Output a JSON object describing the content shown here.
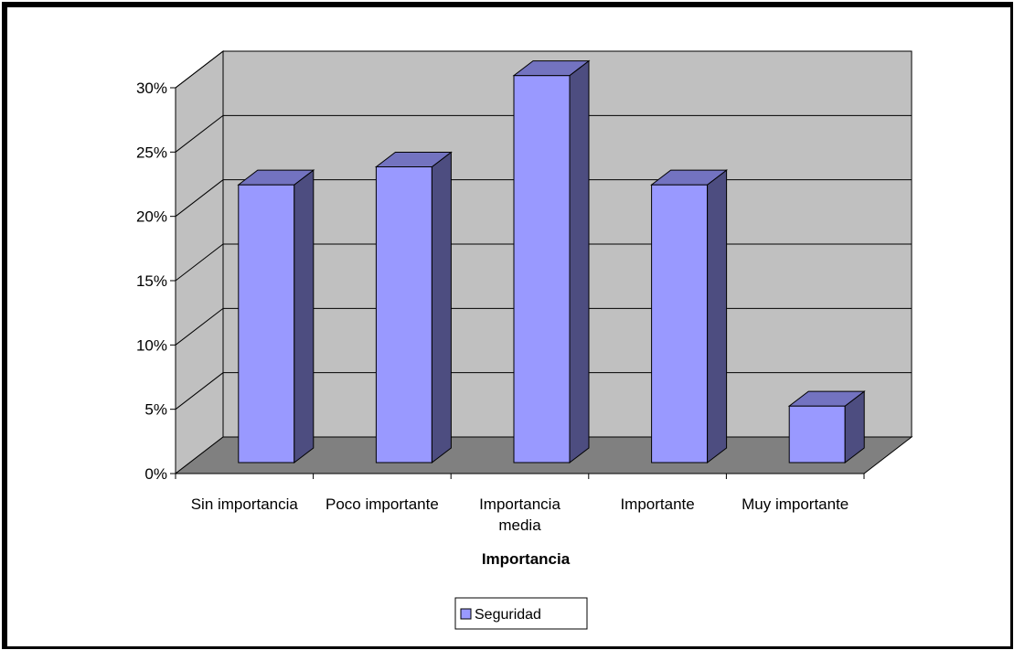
{
  "chart_data": {
    "type": "bar",
    "style": "3d-column",
    "categories": [
      "Sin  importancia",
      "Poco importante",
      "Importancia media",
      "Importante",
      "Muy importante"
    ],
    "category_lines": [
      [
        "Sin  importancia"
      ],
      [
        "Poco importante"
      ],
      [
        "Importancia",
        "media"
      ],
      [
        "Importante"
      ],
      [
        "Muy importante"
      ]
    ],
    "series": [
      {
        "name": "Seguridad",
        "values": [
          0.216,
          0.23,
          0.301,
          0.216,
          0.044
        ],
        "color": "#9999ff"
      }
    ],
    "xlabel": "Importancia",
    "ylabel": "",
    "ylim": [
      0,
      0.3
    ],
    "yticks": [
      0,
      0.05,
      0.1,
      0.15,
      0.2,
      0.25,
      0.3
    ],
    "ytick_labels": [
      "0%",
      "5%",
      "10%",
      "15%",
      "20%",
      "25%",
      "30%"
    ],
    "grid": true,
    "legend": "bottom",
    "colors": {
      "wall": "#c0c0c0",
      "floor": "#808080",
      "bar_front": "#9999ff",
      "bar_side": "#4d4d80",
      "bar_top": "#7373c0"
    }
  }
}
